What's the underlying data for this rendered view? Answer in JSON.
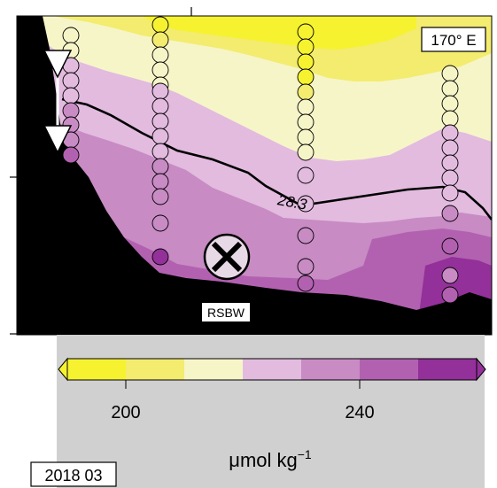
{
  "chart_data": {
    "type": "heatmap",
    "section_label": "170° E",
    "water_mass_label": "RSBW",
    "isopycnal_label": "28.3",
    "date_label": "2018 03",
    "colorbar": {
      "unit_label": "μmol kg",
      "unit_exponent": "−1",
      "ticks": [
        200,
        240
      ],
      "range": [
        190,
        260
      ],
      "bins": [
        {
          "min": 190,
          "max": 200,
          "color": "#f6f230"
        },
        {
          "min": 200,
          "max": 210,
          "color": "#f3ec6e"
        },
        {
          "min": 210,
          "max": 220,
          "color": "#f6f5c8"
        },
        {
          "min": 220,
          "max": 230,
          "color": "#e2bbdf"
        },
        {
          "min": 230,
          "max": 240,
          "color": "#c88bc4"
        },
        {
          "min": 240,
          "max": 250,
          "color": "#b261b0"
        },
        {
          "min": 250,
          "max": 260,
          "color": "#93309a"
        }
      ]
    }
  }
}
